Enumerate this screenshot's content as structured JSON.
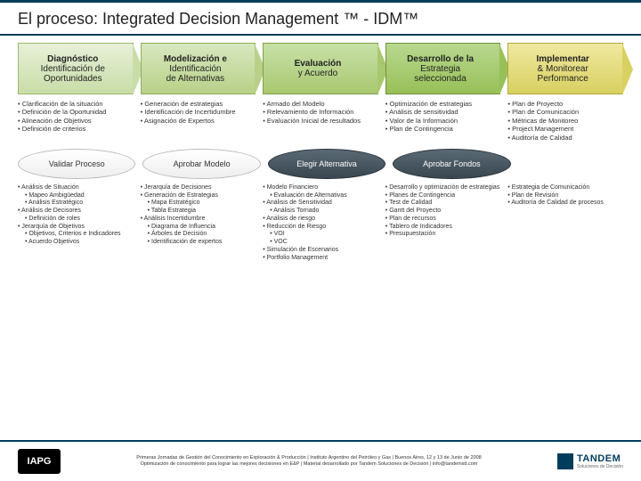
{
  "title": "El proceso: Integrated Decision Management ™ - IDM™",
  "stages": [
    {
      "line1": "Diagnóstico",
      "line2": "Identificación de",
      "line3": "Oportunidades"
    },
    {
      "line1": "Modelización e",
      "line2": "Identificación",
      "line3": "de Alternativas"
    },
    {
      "line1": "Evaluación",
      "line2": "y Acuerdo",
      "line3": ""
    },
    {
      "line1": "Desarrollo de la",
      "line2": "Estrategia",
      "line3": "seleccionada"
    },
    {
      "line1": "Implementar",
      "line2": "& Monitorear",
      "line3": "Performance"
    }
  ],
  "bullets1": [
    [
      "Clarificación de la situación",
      "Definición de la Oportunidad",
      "Alineación de Objetivos",
      "Definición de criterios"
    ],
    [
      "Generación de estrategias",
      "Identificación de Incertidumbre",
      "Asignación de Expertos"
    ],
    [
      "Armado del Modelo",
      "Relevamiento de Información",
      "Evaluación Inicial de resultados"
    ],
    [
      "Optimización de estrategias",
      "Análisis de sensitividad",
      "Valor de la Información",
      "Plan de Contingencia"
    ],
    [
      "Plan de Proyecto",
      "Plan de Comunicación",
      "Métricas de Monitoreo",
      "Project Management",
      "Auditoría de Calidad"
    ]
  ],
  "ovals": [
    {
      "label": "Validar Proceso",
      "style": "white"
    },
    {
      "label": "Aprobar Modelo",
      "style": "white"
    },
    {
      "label": "Elegir Alternativa",
      "style": "dark"
    },
    {
      "label": "Aprobar Fondos",
      "style": "dark"
    },
    {
      "label": "",
      "style": "blank"
    }
  ],
  "bullets2": [
    [
      {
        "t": "Análisis de Situación",
        "l": 0
      },
      {
        "t": "Mapeo Ambigüedad",
        "l": 1
      },
      {
        "t": "Análisis Estratégico",
        "l": 1
      },
      {
        "t": "Análisis de Decisores",
        "l": 0
      },
      {
        "t": "Definición de roles",
        "l": 1
      },
      {
        "t": "Jerarquía de Objetivos",
        "l": 0
      },
      {
        "t": "Objetivos, Criterios e Indicadores",
        "l": 1
      },
      {
        "t": "Acuerdo Objetivos",
        "l": 1
      }
    ],
    [
      {
        "t": "Jerarquía de Decisiones",
        "l": 0
      },
      {
        "t": "Generación de Estrategias",
        "l": 0
      },
      {
        "t": "Mapa Estratégico",
        "l": 1
      },
      {
        "t": "Tabla Estrategia",
        "l": 1
      },
      {
        "t": "Análisis Incertidumbre",
        "l": 0
      },
      {
        "t": "Diagrama de Influencia",
        "l": 1
      },
      {
        "t": "Árboles de Decisión",
        "l": 1
      },
      {
        "t": "Identificación de expertos",
        "l": 1
      }
    ],
    [
      {
        "t": "Modelo Financiero",
        "l": 0
      },
      {
        "t": "Evaluación de Alternativas",
        "l": 1
      },
      {
        "t": "Análisis de Sensitividad",
        "l": 0
      },
      {
        "t": "Análisis Tornado",
        "l": 1
      },
      {
        "t": "Análisis de riesgo",
        "l": 0
      },
      {
        "t": "Reducción de Riesgo",
        "l": 0
      },
      {
        "t": "VOI",
        "l": 1
      },
      {
        "t": "VOC",
        "l": 1
      },
      {
        "t": "Simulación de Escenarios",
        "l": 0
      },
      {
        "t": "Portfolio Management",
        "l": 0
      }
    ],
    [
      {
        "t": "Desarrollo y optimización de estrategias",
        "l": 0
      },
      {
        "t": "Planes de Contingencia",
        "l": 0
      },
      {
        "t": "Test de Calidad",
        "l": 0
      },
      {
        "t": "Gantt del Proyecto",
        "l": 0
      },
      {
        "t": "Plan de recursos",
        "l": 0
      },
      {
        "t": "Tablero de Indicadores",
        "l": 0
      },
      {
        "t": "Presupuestación",
        "l": 0
      }
    ],
    [
      {
        "t": "Estrategia de Comunicación",
        "l": 0
      },
      {
        "t": "Plan de Revisión",
        "l": 0
      },
      {
        "t": "Auditoría de Calidad de procesos",
        "l": 0
      }
    ]
  ],
  "footer": {
    "left_logo": "IAPG",
    "text1": "Primeras Jornadas de Gestión del Conocimiento en Exploración & Producción | Instituto Argentino del Petróleo y Gas | Buenos Aires, 12 y 13 de Junio de 2008",
    "text2": "Optimización de conocimiento para lograr las mejores decisiones en E&P | Material desarrollado por Tandem Soluciones de Decisión | info@tandemsd.com",
    "right_logo": "TANDEM",
    "right_sub": "Soluciones de Decisión"
  }
}
